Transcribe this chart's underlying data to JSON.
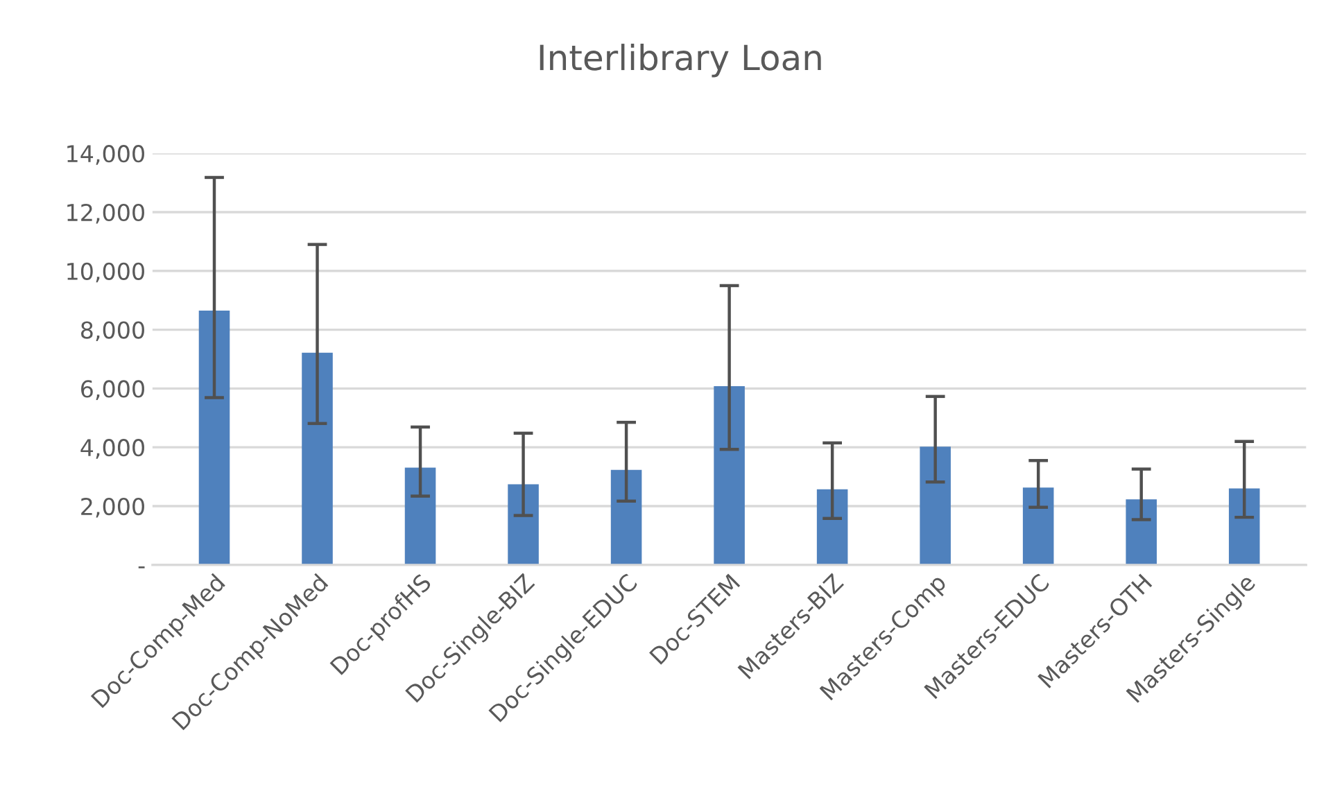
{
  "chart_data": {
    "type": "bar",
    "title": "Interlibrary Loan",
    "categories": [
      "Doc-Comp-Med",
      "Doc-Comp-NoMed",
      "Doc-profHS",
      "Doc-Single-BIZ",
      "Doc-Single-EDUC",
      "Doc-STEM",
      "Masters-BIZ",
      "Masters-Comp",
      "Masters-EDUC",
      "Masters-OTH",
      "Masters-Single"
    ],
    "values": [
      8650,
      7220,
      3310,
      2740,
      3230,
      6080,
      2570,
      4020,
      2630,
      2230,
      2600
    ],
    "errors": [
      [
        5690,
        13180
      ],
      [
        4810,
        10900
      ],
      [
        2340,
        4690
      ],
      [
        1680,
        4480
      ],
      [
        2170,
        4850
      ],
      [
        3930,
        9500
      ],
      [
        1580,
        4150
      ],
      [
        2820,
        5730
      ],
      [
        1960,
        3550
      ],
      [
        1540,
        3260
      ],
      [
        1620,
        4200
      ]
    ],
    "color": "#4f81bd",
    "ylim": [
      0,
      14000
    ],
    "yticks": [
      {
        "value": 0,
        "label": "-"
      },
      {
        "value": 2000,
        "label": "2,000"
      },
      {
        "value": 4000,
        "label": "4,000"
      },
      {
        "value": 6000,
        "label": "6,000"
      },
      {
        "value": 8000,
        "label": "8,000"
      },
      {
        "value": 10000,
        "label": "10,000"
      },
      {
        "value": 12000,
        "label": "12,000"
      },
      {
        "value": 14000,
        "label": "14,000"
      }
    ],
    "grid": "y",
    "legend": false
  }
}
